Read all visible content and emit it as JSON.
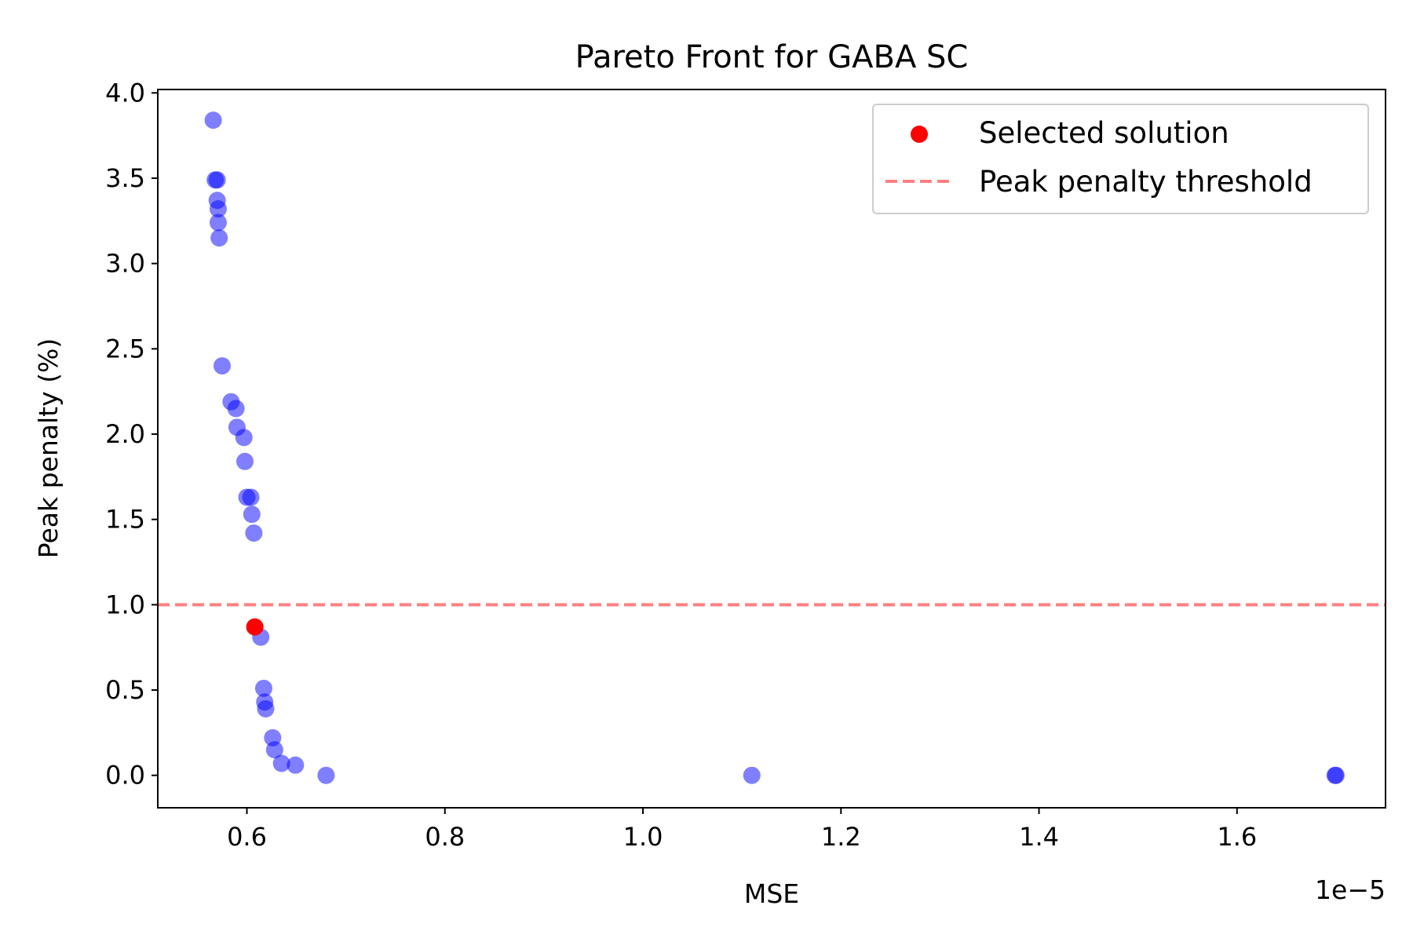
{
  "chart_data": {
    "type": "scatter",
    "title": "Pareto Front for GABA SC",
    "xlabel": "MSE",
    "ylabel": "Peak penalty (%)",
    "x_offset_text": "1e−5",
    "xlim": [
      0.51,
      1.75
    ],
    "ylim": [
      -0.19,
      4.02
    ],
    "xticks": [
      0.6,
      0.8,
      1.0,
      1.2,
      1.4,
      1.6
    ],
    "xtick_labels": [
      "0.6",
      "0.8",
      "1.0",
      "1.2",
      "1.4",
      "1.6"
    ],
    "yticks": [
      0.0,
      0.5,
      1.0,
      1.5,
      2.0,
      2.5,
      3.0,
      3.5,
      4.0
    ],
    "ytick_labels": [
      "0.0",
      "0.5",
      "1.0",
      "1.5",
      "2.0",
      "2.5",
      "3.0",
      "3.5",
      "4.0"
    ],
    "grid": false,
    "legend_position": "top-right",
    "series": [
      {
        "name": "",
        "color": "#0000ff",
        "alpha": 0.5,
        "points": [
          [
            0.566,
            3.84
          ],
          [
            0.568,
            3.49
          ],
          [
            0.57,
            3.49
          ],
          [
            0.57,
            3.37
          ],
          [
            0.571,
            3.32
          ],
          [
            0.571,
            3.24
          ],
          [
            0.572,
            3.15
          ],
          [
            0.575,
            2.4
          ],
          [
            0.584,
            2.19
          ],
          [
            0.589,
            2.15
          ],
          [
            0.59,
            2.04
          ],
          [
            0.597,
            1.98
          ],
          [
            0.598,
            1.84
          ],
          [
            0.6,
            1.63
          ],
          [
            0.604,
            1.63
          ],
          [
            0.605,
            1.53
          ],
          [
            0.607,
            1.42
          ],
          [
            0.614,
            0.81
          ],
          [
            0.617,
            0.51
          ],
          [
            0.618,
            0.43
          ],
          [
            0.619,
            0.39
          ],
          [
            0.626,
            0.22
          ],
          [
            0.628,
            0.15
          ],
          [
            0.635,
            0.07
          ],
          [
            0.649,
            0.06
          ],
          [
            0.68,
            0.0
          ],
          [
            1.11,
            0.0
          ],
          [
            1.699,
            0.0
          ],
          [
            1.7,
            0.0
          ]
        ]
      },
      {
        "name": "Selected solution",
        "color": "#ff0000",
        "alpha": 1.0,
        "points": [
          [
            0.608,
            0.87
          ]
        ]
      }
    ],
    "threshold": {
      "name": "Peak penalty threshold",
      "y": 1.0,
      "color": "#ff8080",
      "style": "dashed"
    }
  }
}
